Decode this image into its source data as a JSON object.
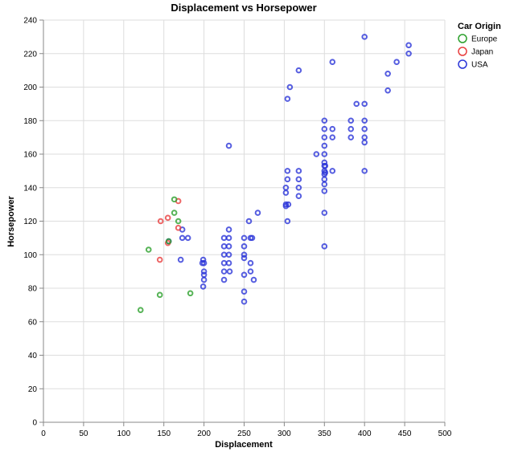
{
  "chart_data": {
    "type": "scatter",
    "title": "Displacement vs Horsepower",
    "xlabel": "Displacement",
    "ylabel": "Horsepower",
    "xlim": [
      0,
      500
    ],
    "ylim": [
      0,
      240
    ],
    "xticks": [
      0,
      50,
      100,
      150,
      200,
      250,
      300,
      350,
      400,
      450,
      500
    ],
    "yticks": [
      0,
      20,
      40,
      60,
      80,
      100,
      120,
      140,
      160,
      180,
      200,
      220,
      240
    ],
    "grid": true,
    "legend": {
      "title": "Car Origin",
      "position": "top-right",
      "entries": [
        "Europe",
        "Japan",
        "USA"
      ]
    },
    "colors": {
      "Europe": "#2ca02c",
      "Japan": "#e83e3e",
      "USA": "#2a35d8"
    },
    "series": [
      {
        "name": "Europe",
        "points": [
          [
            121,
            67
          ],
          [
            131,
            103
          ],
          [
            145,
            76
          ],
          [
            163,
            133
          ],
          [
            163,
            125
          ],
          [
            168,
            120
          ],
          [
            183,
            77
          ],
          [
            156,
            108
          ]
        ]
      },
      {
        "name": "Japan",
        "points": [
          [
            145,
            97
          ],
          [
            146,
            120
          ],
          [
            155,
            122
          ],
          [
            168,
            132
          ],
          [
            168,
            116
          ],
          [
            155,
            107
          ]
        ]
      },
      {
        "name": "USA",
        "points": [
          [
            156,
            108
          ],
          [
            171,
            97
          ],
          [
            173,
            115
          ],
          [
            173,
            110
          ],
          [
            180,
            110
          ],
          [
            198,
            95
          ],
          [
            199,
            97
          ],
          [
            200,
            95
          ],
          [
            200,
            90
          ],
          [
            200,
            88
          ],
          [
            200,
            85
          ],
          [
            199,
            81
          ],
          [
            225,
            110
          ],
          [
            225,
            105
          ],
          [
            225,
            100
          ],
          [
            225,
            95
          ],
          [
            225,
            90
          ],
          [
            225,
            85
          ],
          [
            231,
            165
          ],
          [
            231,
            115
          ],
          [
            231,
            110
          ],
          [
            231,
            105
          ],
          [
            231,
            100
          ],
          [
            231,
            95
          ],
          [
            232,
            90
          ],
          [
            250,
            110
          ],
          [
            250,
            105
          ],
          [
            250,
            100
          ],
          [
            250,
            98
          ],
          [
            250,
            88
          ],
          [
            250,
            78
          ],
          [
            250,
            72
          ],
          [
            256,
            120
          ],
          [
            258,
            110
          ],
          [
            258,
            95
          ],
          [
            258,
            90
          ],
          [
            260,
            110
          ],
          [
            262,
            85
          ],
          [
            267,
            125
          ],
          [
            302,
            140
          ],
          [
            302,
            137
          ],
          [
            302,
            130
          ],
          [
            302,
            129
          ],
          [
            304,
            193
          ],
          [
            304,
            150
          ],
          [
            304,
            145
          ],
          [
            304,
            120
          ],
          [
            305,
            130
          ],
          [
            307,
            200
          ],
          [
            318,
            210
          ],
          [
            318,
            150
          ],
          [
            318,
            145
          ],
          [
            318,
            140
          ],
          [
            318,
            135
          ],
          [
            340,
            160
          ],
          [
            350,
            180
          ],
          [
            350,
            175
          ],
          [
            350,
            170
          ],
          [
            350,
            165
          ],
          [
            350,
            160
          ],
          [
            350,
            155
          ],
          [
            350,
            153
          ],
          [
            350,
            150
          ],
          [
            350,
            148
          ],
          [
            350,
            145
          ],
          [
            350,
            142
          ],
          [
            350,
            138
          ],
          [
            350,
            125
          ],
          [
            350,
            105
          ],
          [
            351,
            153
          ],
          [
            351,
            149
          ],
          [
            360,
            215
          ],
          [
            360,
            175
          ],
          [
            360,
            170
          ],
          [
            360,
            150
          ],
          [
            383,
            180
          ],
          [
            383,
            175
          ],
          [
            383,
            170
          ],
          [
            390,
            190
          ],
          [
            400,
            230
          ],
          [
            400,
            190
          ],
          [
            400,
            180
          ],
          [
            400,
            175
          ],
          [
            400,
            170
          ],
          [
            400,
            167
          ],
          [
            400,
            150
          ],
          [
            429,
            208
          ],
          [
            429,
            198
          ],
          [
            440,
            215
          ],
          [
            455,
            225
          ],
          [
            455,
            220
          ]
        ]
      }
    ]
  }
}
